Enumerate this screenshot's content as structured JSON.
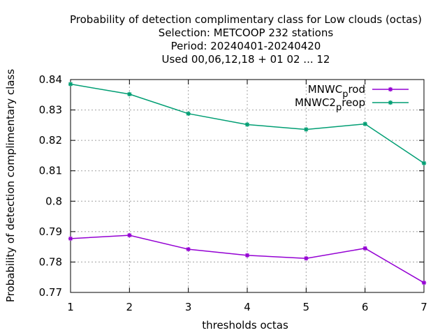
{
  "chart_data": {
    "type": "line",
    "title_lines": [
      "Probability of detection complimentary class  for Low clouds (octas)",
      "Selection: METCOOP    232 stations",
      "Period: 20240401-20240420",
      "Used  00,06,12,18 + 01 02 ... 12"
    ],
    "xlabel": "thresholds octas",
    "ylabel": "Probability of detection complimentary class",
    "x": [
      1,
      2,
      3,
      4,
      5,
      6,
      7
    ],
    "xlim": [
      1,
      7
    ],
    "ylim": [
      0.77,
      0.84
    ],
    "xticks": [
      "1",
      "2",
      "3",
      "4",
      "5",
      "6",
      "7"
    ],
    "yticks": [
      "0.77",
      "0.78",
      "0.79",
      "0.8",
      "0.81",
      "0.82",
      "0.83",
      "0.84"
    ],
    "grid": true,
    "legend_position": "top-right",
    "series": [
      {
        "name": "MNWC_prod",
        "legend_main": "MNWC",
        "legend_sub": "p",
        "legend_tail": "rod",
        "color": "#9400d3",
        "values": [
          0.7877,
          0.7888,
          0.7842,
          0.7822,
          0.7812,
          0.7845,
          0.7732
        ]
      },
      {
        "name": "MNWC2_preop",
        "legend_main": "MNWC2",
        "legend_sub": "p",
        "legend_tail": "reop",
        "color": "#009e73",
        "values": [
          0.8385,
          0.8352,
          0.8288,
          0.8252,
          0.8236,
          0.8254,
          0.8125
        ]
      }
    ]
  }
}
